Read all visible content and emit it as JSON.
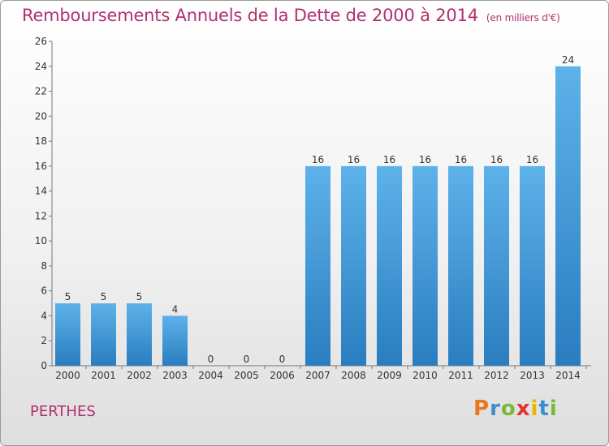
{
  "title": "Remboursements Annuels de la Dette de 2000 à 2014",
  "unit_note": "(en milliers d'€)",
  "commune": "PERTHES",
  "brand": {
    "letters": [
      "P",
      "r",
      "o",
      "x",
      "i",
      "t",
      "i"
    ],
    "colors": [
      "#e8771e",
      "#3a8fd0",
      "#7ab83a",
      "#e0342f",
      "#f0b400",
      "#3a8fd0",
      "#7ab83a"
    ]
  },
  "colors": {
    "title": "#b0306f",
    "bar_top": "#5eb2ea",
    "bar_bottom": "#2a7dbf"
  },
  "chart_data": {
    "type": "bar",
    "categories": [
      "2000",
      "2001",
      "2002",
      "2003",
      "2004",
      "2005",
      "2006",
      "2007",
      "2008",
      "2009",
      "2010",
      "2011",
      "2012",
      "2013",
      "2014"
    ],
    "values": [
      5,
      5,
      5,
      4,
      0,
      0,
      0,
      16,
      16,
      16,
      16,
      16,
      16,
      16,
      24
    ],
    "ylim": [
      0,
      26
    ],
    "yticks": [
      0,
      2,
      4,
      6,
      8,
      10,
      12,
      14,
      16,
      18,
      20,
      22,
      24,
      26
    ],
    "grid": false,
    "data_labels": true
  }
}
